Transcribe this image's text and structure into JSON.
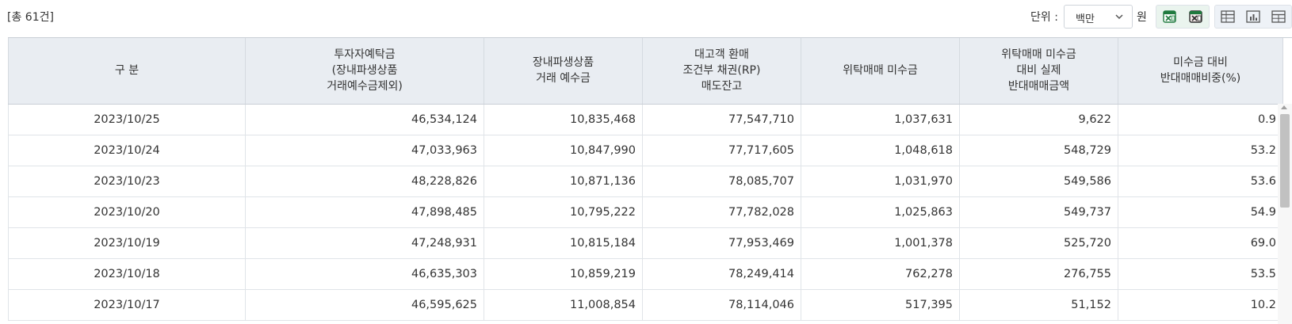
{
  "header": {
    "total_count": "[총 61건]",
    "unit_label": "단위 :",
    "unit_selected": "백만",
    "currency_suffix": "원"
  },
  "icons": {
    "excel_export_1": "xlsx-download-icon",
    "excel_export_2": "xls-download-icon",
    "view_table": "table-view-icon",
    "view_chart": "chart-view-icon",
    "view_grid": "grid-view-icon"
  },
  "colors": {
    "header_bg": "#e9edf2",
    "excel_green": "#1f7a3e"
  },
  "table": {
    "columns": [
      [
        "구 분"
      ],
      [
        "투자자예탁금",
        "(장내파생상품",
        "거래예수금제외)"
      ],
      [
        "장내파생상품",
        "거래 예수금"
      ],
      [
        "대고객 환매",
        "조건부 채권(RP)",
        "매도잔고"
      ],
      [
        "위탁매매 미수금"
      ],
      [
        "위탁매매 미수금",
        "대비 실제",
        "반대매매금액"
      ],
      [
        "미수금 대비",
        "반대매매비중(%)"
      ]
    ],
    "rows": [
      [
        "2023/10/25",
        "46,534,124",
        "10,835,468",
        "77,547,710",
        "1,037,631",
        "9,622",
        "0.9"
      ],
      [
        "2023/10/24",
        "47,033,963",
        "10,847,990",
        "77,717,605",
        "1,048,618",
        "548,729",
        "53.2"
      ],
      [
        "2023/10/23",
        "48,228,826",
        "10,871,136",
        "78,085,707",
        "1,031,970",
        "549,586",
        "53.6"
      ],
      [
        "2023/10/20",
        "47,898,485",
        "10,795,222",
        "77,782,028",
        "1,025,863",
        "549,737",
        "54.9"
      ],
      [
        "2023/10/19",
        "47,248,931",
        "10,815,184",
        "77,953,469",
        "1,001,378",
        "525,720",
        "69.0"
      ],
      [
        "2023/10/18",
        "46,635,303",
        "10,859,219",
        "78,249,414",
        "762,278",
        "276,755",
        "53.5"
      ],
      [
        "2023/10/17",
        "46,595,625",
        "11,008,854",
        "78,114,046",
        "517,395",
        "51,152",
        "10.2"
      ]
    ]
  }
}
